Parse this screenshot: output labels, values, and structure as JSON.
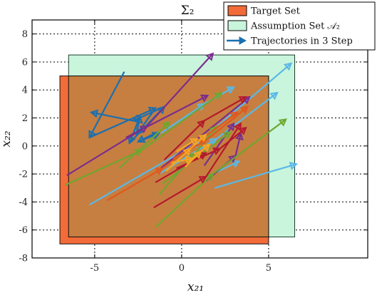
{
  "chart_data": {
    "type": "line",
    "title": "Σ₂",
    "xlabel": "x₂₁",
    "ylabel": "x₂₂",
    "xlim": [
      -8.6,
      10.7
    ],
    "ylim": [
      -8,
      9
    ],
    "xticks": [
      -5,
      0,
      5
    ],
    "xtick_labels": [
      "-5",
      "0",
      "5"
    ],
    "yticks": [
      -8,
      -6,
      -4,
      -2,
      0,
      2,
      4,
      6,
      8
    ],
    "ytick_labels": [
      "-8",
      "-6",
      "-4",
      "-2",
      "0",
      "2",
      "4",
      "6",
      "8"
    ],
    "grid": true,
    "legend_position": "top-right",
    "legend": [
      {
        "label": "Target Set",
        "kind": "patch",
        "color": "#f26b38"
      },
      {
        "label": "Assumption Set 𝒜₂",
        "kind": "patch",
        "color": "#c8f5dc"
      },
      {
        "label": "Trajectories in 3 Step",
        "kind": "line",
        "color": "#1a6fb0"
      }
    ],
    "regions": [
      {
        "name": "assumption-set",
        "x": [
          -6.5,
          6.5
        ],
        "y": [
          -6.5,
          6.5
        ],
        "fill": "#c8f5dc",
        "stroke": "#1f3f2c"
      },
      {
        "name": "target-set",
        "x": [
          -7,
          5
        ],
        "y": [
          -7,
          5
        ],
        "fill": "#f26b38",
        "stroke": "#111111"
      },
      {
        "name": "target-intersection",
        "x": [
          -6.5,
          5
        ],
        "y": [
          -6.5,
          5
        ],
        "fill": "#c67f40",
        "stroke": "#111111"
      }
    ],
    "series": [
      {
        "color": "#1a6fb0",
        "points": [
          [
            -3.3,
            5.3
          ],
          [
            -5.3,
            0.6
          ],
          [
            -1.5,
            2.7
          ],
          [
            -2.6,
            0.8
          ],
          [
            -2.4,
            2.1
          ],
          [
            -3.0,
            0.2
          ],
          [
            -1.0,
            2.8
          ],
          [
            -2.8,
            1.8
          ],
          [
            -5.2,
            2.4
          ]
        ]
      },
      {
        "color": "#1a6fb0",
        "points": [
          [
            -1.4,
            1.0
          ],
          [
            -2.5,
            0.3
          ],
          [
            -1.3,
            0.9
          ]
        ]
      },
      {
        "color": "#5bb8e6",
        "points": [
          [
            -5.3,
            -4.2
          ],
          [
            1.0,
            0.3
          ],
          [
            6.3,
            5.9
          ]
        ]
      },
      {
        "color": "#5bb8e6",
        "points": [
          [
            -1.3,
            -2.0
          ],
          [
            2.0,
            0.5
          ],
          [
            5.5,
            3.8
          ]
        ]
      },
      {
        "color": "#5bb8e6",
        "points": [
          [
            -1.2,
            0.9
          ],
          [
            1.3,
            3.0
          ],
          [
            3.0,
            4.2
          ]
        ]
      },
      {
        "color": "#5bb8e6",
        "points": [
          [
            1.9,
            -3.0
          ],
          [
            6.6,
            -1.3
          ]
        ]
      },
      {
        "color": "#5bb8e6",
        "points": [
          [
            1.6,
            -2.1
          ],
          [
            3.3,
            -1.1
          ]
        ]
      },
      {
        "color": "#7b2d8e",
        "points": [
          [
            -6.6,
            -2.1
          ],
          [
            -2.0,
            1.4
          ],
          [
            1.8,
            6.6
          ]
        ]
      },
      {
        "color": "#7b2d8e",
        "points": [
          [
            -3.2,
            0.6
          ],
          [
            1.5,
            3.6
          ]
        ]
      },
      {
        "color": "#7b2d8e",
        "points": [
          [
            -1.2,
            -1.6
          ],
          [
            3.9,
            3.5
          ]
        ]
      },
      {
        "color": "#7b2d8e",
        "points": [
          [
            1.3,
            -1.4
          ],
          [
            3.0,
            1.6
          ]
        ]
      },
      {
        "color": "#7b2d8e",
        "points": [
          [
            1.4,
            -2.5
          ],
          [
            3.1,
            -0.7
          ],
          [
            3.4,
            0.9
          ]
        ]
      },
      {
        "color": "#6fa630",
        "points": [
          [
            -6.7,
            -2.8
          ],
          [
            -2.3,
            -0.3
          ],
          [
            2.3,
            3.8
          ]
        ]
      },
      {
        "color": "#6fa630",
        "points": [
          [
            -3.6,
            -1.6
          ],
          [
            -0.7,
            1.7
          ]
        ]
      },
      {
        "color": "#6fa630",
        "points": [
          [
            -1.5,
            -5.8
          ],
          [
            1.8,
            -2.0
          ],
          [
            6.0,
            1.9
          ]
        ]
      },
      {
        "color": "#6fa630",
        "points": [
          [
            -1.3,
            -3.5
          ],
          [
            0.8,
            -0.5
          ],
          [
            2.0,
            1.4
          ]
        ]
      },
      {
        "color": "#6fa630",
        "points": [
          [
            -1.1,
            -2.7
          ],
          [
            2.8,
            1.0
          ]
        ]
      },
      {
        "color": "#b5182e",
        "points": [
          [
            -1.6,
            -4.4
          ],
          [
            1.4,
            -2.2
          ],
          [
            3.4,
            1.6
          ]
        ]
      },
      {
        "color": "#b5182e",
        "points": [
          [
            -1.0,
            -1.0
          ],
          [
            1.3,
            1.8
          ],
          [
            3.7,
            3.5
          ]
        ]
      },
      {
        "color": "#b5182e",
        "points": [
          [
            -0.3,
            -1.6
          ],
          [
            2.2,
            -0.2
          ],
          [
            3.7,
            1.3
          ]
        ]
      },
      {
        "color": "#b5182e",
        "points": [
          [
            -1.5,
            -2.6
          ],
          [
            1.4,
            -0.5
          ]
        ]
      },
      {
        "color": "#e0581e",
        "points": [
          [
            -4.3,
            -3.9
          ],
          [
            -1.1,
            -1.6
          ],
          [
            3.2,
            2.4
          ]
        ]
      },
      {
        "color": "#e0581e",
        "points": [
          [
            -0.5,
            -0.9
          ],
          [
            1.4,
            0.4
          ],
          [
            3.8,
            2.8
          ]
        ]
      },
      {
        "color": "#f5a623",
        "points": [
          [
            -0.9,
            -1.8
          ],
          [
            0.5,
            -0.2
          ],
          [
            1.4,
            0.8
          ]
        ]
      },
      {
        "color": "#f5a623",
        "points": [
          [
            -0.6,
            -1.2
          ],
          [
            0.6,
            -0.9
          ],
          [
            1.6,
            0.1
          ]
        ]
      },
      {
        "color": "#f5a623",
        "points": [
          [
            -0.3,
            -0.4
          ],
          [
            0.9,
            0.5
          ]
        ]
      },
      {
        "color": "#f5a623",
        "points": [
          [
            0.2,
            -1.5
          ],
          [
            1.1,
            -0.4
          ]
        ]
      }
    ]
  }
}
